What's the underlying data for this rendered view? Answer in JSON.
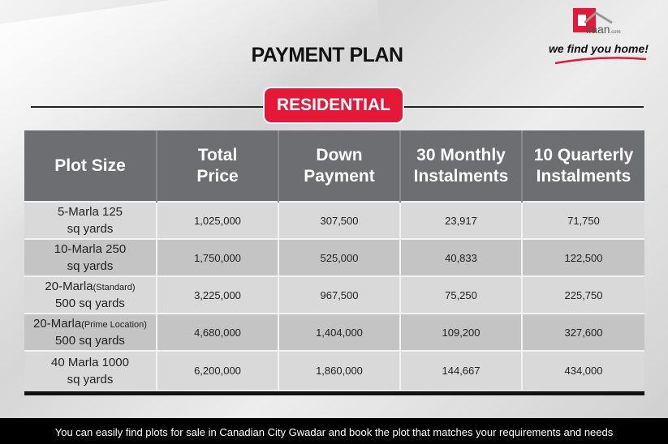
{
  "header": {
    "title": "PAYMENT PLAN",
    "badge": "RESIDENTIAL"
  },
  "logo": {
    "word": "ilaan",
    "domain": ".com",
    "tagline": "we find you home!",
    "brand_color": "#e51937"
  },
  "table": {
    "headers": [
      [
        "Plot Size"
      ],
      [
        "Total",
        "Price"
      ],
      [
        "Down",
        "Payment"
      ],
      [
        "30 Monthly",
        "Instalments"
      ],
      [
        "10 Quarterly",
        "Instalments"
      ]
    ],
    "rows": [
      {
        "plot_line1": "5-Marla 125",
        "plot_note": "",
        "plot_line2": "sq yards",
        "total": "1,025,000",
        "down": "307,500",
        "monthly": "23,917",
        "quarterly": "71,750"
      },
      {
        "plot_line1": "10-Marla  250",
        "plot_note": "",
        "plot_line2": "sq yards",
        "total": "1,750,000",
        "down": "525,000",
        "monthly": "40,833",
        "quarterly": "122,500"
      },
      {
        "plot_line1": "20-Marla",
        "plot_note": "(Standard)",
        "plot_line2": "500 sq yards",
        "total": "3,225,000",
        "down": "967,500",
        "monthly": "75,250",
        "quarterly": "225,750"
      },
      {
        "plot_line1": "20-Marla",
        "plot_note": "(Prime Location)",
        "plot_line2": "500 sq yards",
        "total": "4,680,000",
        "down": "1,404,000",
        "monthly": "109,200",
        "quarterly": "327,600"
      },
      {
        "plot_line1": "40 Marla 1000",
        "plot_note": "",
        "plot_line2": "sq yards",
        "total": "6,200,000",
        "down": "1,860,000",
        "monthly": "144,667",
        "quarterly": "434,000"
      }
    ]
  },
  "footer": {
    "text": "You can easily find plots for sale in Canadian City Gwadar and book the plot that matches your requirements and needs"
  }
}
